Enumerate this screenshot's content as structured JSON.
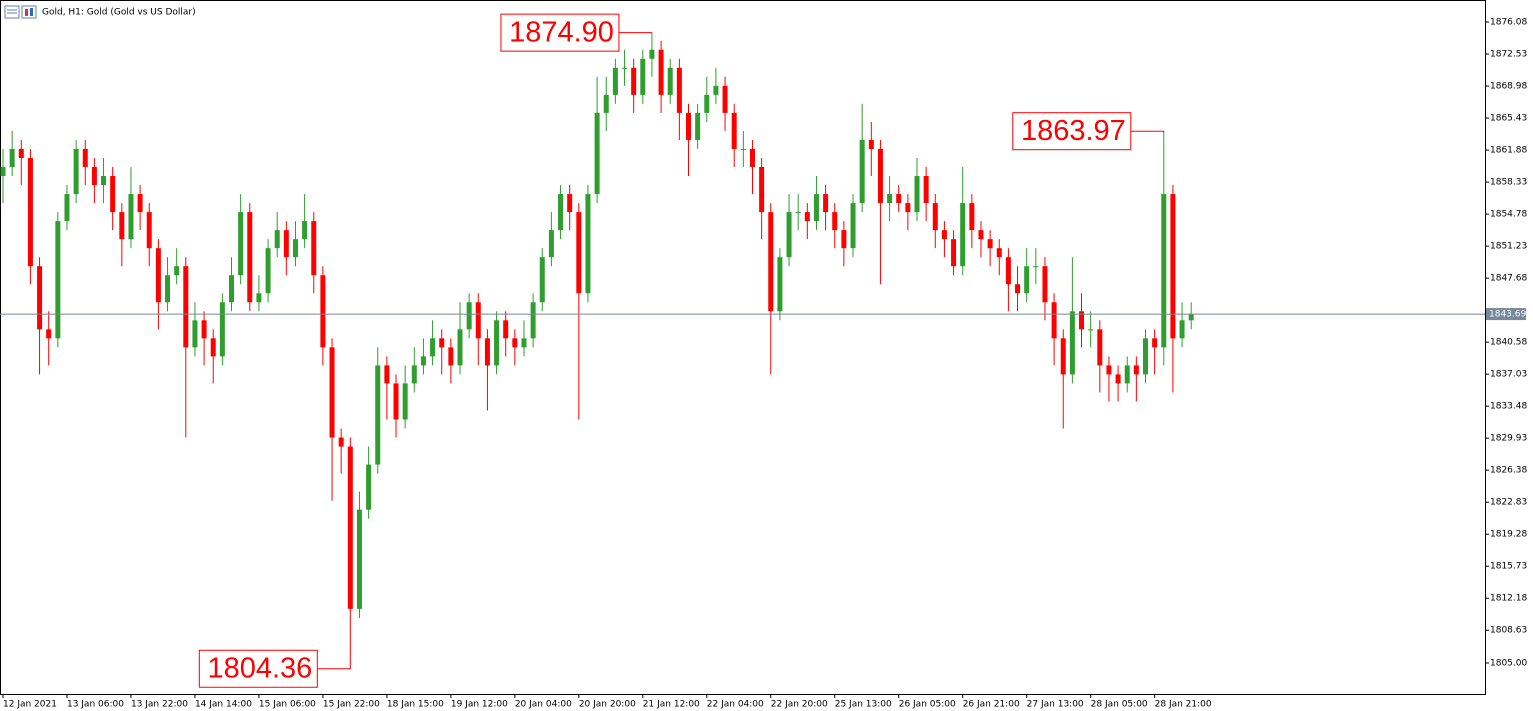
{
  "chart_data": {
    "type": "candlestick",
    "title": "Gold, H1:  Gold (Gold vs US Dollar)",
    "up_color": "#2e9e2e",
    "down_color": "#ff0000",
    "ylim": [
      1801.56,
      1878.52
    ],
    "yticks": [
      1876.08,
      1872.53,
      1868.98,
      1865.43,
      1861.88,
      1858.33,
      1854.78,
      1851.23,
      1847.68,
      1840.58,
      1837.03,
      1833.48,
      1829.93,
      1826.38,
      1822.83,
      1819.28,
      1815.73,
      1812.18,
      1808.63,
      {
        "value": 1805,
        "label": "1805.00"
      }
    ],
    "categories": [
      "12 Jan 2021",
      null,
      null,
      null,
      null,
      null,
      null,
      "13 Jan 06:00",
      null,
      null,
      null,
      null,
      null,
      null,
      "13 Jan 22:00",
      null,
      null,
      null,
      null,
      null,
      null,
      "14 Jan 14:00",
      null,
      null,
      null,
      null,
      null,
      null,
      "15 Jan 06:00",
      null,
      null,
      null,
      null,
      null,
      null,
      "15 Jan 22:00",
      null,
      null,
      null,
      null,
      null,
      null,
      "18 Jan 15:00",
      null,
      null,
      null,
      null,
      null,
      null,
      "19 Jan 12:00",
      null,
      null,
      null,
      null,
      null,
      null,
      "20 Jan 04:00",
      null,
      null,
      null,
      null,
      null,
      null,
      "20 Jan 20:00",
      null,
      null,
      null,
      null,
      null,
      null,
      "21 Jan 12:00",
      null,
      null,
      null,
      null,
      null,
      null,
      "22 Jan 04:00",
      null,
      null,
      null,
      null,
      null,
      null,
      "22 Jan 20:00",
      null,
      null,
      null,
      null,
      null,
      null,
      "25 Jan 13:00",
      null,
      null,
      null,
      null,
      null,
      null,
      "26 Jan 05:00",
      null,
      null,
      null,
      null,
      null,
      null,
      "26 Jan 21:00",
      null,
      null,
      null,
      null,
      null,
      null,
      "27 Jan 13:00",
      null,
      null,
      null,
      null,
      null,
      null,
      "28 Jan 05:00",
      null,
      null,
      null,
      null,
      null,
      null,
      "28 Jan 21:00",
      null,
      null,
      null,
      null
    ],
    "open": [
      1859,
      1860,
      1862,
      1861,
      1849,
      1842,
      1841,
      1854,
      1857,
      1862,
      1860,
      1858,
      1859,
      1855,
      1852,
      1857,
      1855,
      1851,
      1845,
      1848,
      1849,
      1840,
      1843,
      1841,
      1839,
      1845,
      1848,
      1855,
      1845,
      1846,
      1851,
      1853,
      1850,
      1852,
      1854,
      1848,
      1840,
      1830,
      1829,
      1811,
      1822,
      1827,
      1838,
      1836,
      1832,
      1836,
      1838,
      1839,
      1841,
      1840,
      1838,
      1842,
      1845,
      1841,
      1838,
      1843,
      1841,
      1840,
      1841,
      1845,
      1850,
      1853,
      1857,
      1855,
      1846,
      1857,
      1866,
      1868,
      1871,
      1871,
      1868,
      1872,
      1873,
      1868,
      1871,
      1866,
      1863,
      1866,
      1868,
      1869,
      1866,
      1862,
      1862,
      1860,
      1855,
      1844,
      1850,
      1855,
      1855,
      1854,
      1857,
      1855,
      1853,
      1851,
      1856,
      1863,
      1862,
      1856,
      1857,
      1856,
      1855,
      1859,
      1856,
      1853,
      1852,
      1849,
      1856,
      1853,
      1852,
      1851,
      1850,
      1847,
      1846,
      1849,
      1849,
      1845,
      1841,
      1837,
      1844,
      1842,
      1842,
      1838,
      1837,
      1836,
      1838,
      1837,
      1841,
      1840,
      1857,
      1841,
      1843
    ],
    "high": [
      1862,
      1864,
      1863,
      1862,
      1850,
      1844,
      1855,
      1858,
      1863,
      1863,
      1861,
      1861,
      1860,
      1856,
      1860,
      1858,
      1856,
      1852,
      1850,
      1851,
      1850,
      1845,
      1844,
      1842,
      1846,
      1850,
      1857,
      1856,
      1848,
      1852,
      1855,
      1854,
      1854,
      1857,
      1855,
      1849,
      1841,
      1831,
      1830,
      1824,
      1829,
      1840,
      1839,
      1837,
      1838,
      1840,
      1841,
      1843,
      1842,
      1841,
      1845,
      1846,
      1846,
      1842,
      1844,
      1844,
      1842,
      1843,
      1846,
      1851,
      1855,
      1858,
      1858,
      1856,
      1858,
      1870,
      1870,
      1872,
      1873,
      1872,
      1873,
      1874.9,
      1874,
      1872,
      1872,
      1867,
      1867,
      1870,
      1871,
      1870,
      1867,
      1864,
      1863,
      1861,
      1856,
      1851,
      1857,
      1857,
      1856,
      1859,
      1858,
      1856,
      1854,
      1857,
      1867,
      1865,
      1863,
      1859,
      1858,
      1857,
      1861,
      1860,
      1857,
      1854,
      1853,
      1860,
      1857,
      1854,
      1853,
      1852,
      1851,
      1849,
      1851,
      1851,
      1850,
      1846,
      1842,
      1850,
      1846,
      1844,
      1843,
      1839,
      1838,
      1839,
      1839,
      1842,
      1842,
      1863.97,
      1858,
      1845,
      1845
    ],
    "low": [
      1856,
      1859,
      1858,
      1847,
      1837,
      1838,
      1840,
      1853,
      1856,
      1858,
      1856,
      1856,
      1853,
      1849,
      1851,
      1853,
      1849,
      1842,
      1844,
      1847,
      1830,
      1839,
      1838,
      1836,
      1838,
      1844,
      1847,
      1844,
      1844,
      1845,
      1850,
      1848,
      1849,
      1851,
      1846,
      1838,
      1823,
      1826,
      1804.36,
      1810,
      1821,
      1826,
      1832,
      1830,
      1831,
      1835,
      1837,
      1838,
      1837,
      1836,
      1837,
      1841,
      1838,
      1833,
      1837,
      1839,
      1838,
      1839,
      1840,
      1844,
      1849,
      1852,
      1853,
      1832,
      1845,
      1856,
      1864,
      1867,
      1869,
      1866,
      1867,
      1870,
      1866,
      1867,
      1863,
      1859,
      1862,
      1865,
      1867,
      1864,
      1860,
      1860,
      1857,
      1852,
      1837,
      1843,
      1849,
      1853,
      1852,
      1853,
      1853,
      1851,
      1849,
      1850,
      1855,
      1859,
      1847,
      1854,
      1855,
      1853,
      1854,
      1854,
      1851,
      1850,
      1848,
      1848,
      1851,
      1850,
      1849,
      1848,
      1844,
      1844,
      1845,
      1847,
      1843,
      1838,
      1831,
      1836,
      1840,
      1840,
      1835,
      1834,
      1834,
      1835,
      1834,
      1836,
      1837,
      1838,
      1835,
      1840,
      1842
    ],
    "close": [
      1860,
      1862,
      1861,
      1849,
      1842,
      1841,
      1854,
      1857,
      1862,
      1860,
      1858,
      1859,
      1855,
      1852,
      1857,
      1855,
      1851,
      1845,
      1848,
      1849,
      1840,
      1843,
      1841,
      1839,
      1845,
      1848,
      1855,
      1845,
      1846,
      1851,
      1853,
      1850,
      1852,
      1854,
      1848,
      1840,
      1830,
      1829,
      1811,
      1822,
      1827,
      1838,
      1836,
      1832,
      1836,
      1838,
      1839,
      1841,
      1840,
      1838,
      1842,
      1845,
      1841,
      1838,
      1843,
      1841,
      1840,
      1841,
      1845,
      1850,
      1853,
      1857,
      1855,
      1846,
      1857,
      1866,
      1868,
      1871,
      1871,
      1868,
      1872,
      1873,
      1868,
      1871,
      1866,
      1863,
      1866,
      1868,
      1869,
      1866,
      1862,
      1862,
      1860,
      1855,
      1844,
      1850,
      1855,
      1855,
      1854,
      1857,
      1855,
      1853,
      1851,
      1856,
      1863,
      1862,
      1856,
      1857,
      1856,
      1855,
      1859,
      1856,
      1853,
      1852,
      1849,
      1856,
      1853,
      1852,
      1851,
      1850,
      1847,
      1846,
      1849,
      1849,
      1845,
      1841,
      1837,
      1844,
      1842,
      1842,
      1838,
      1837,
      1836,
      1838,
      1837,
      1841,
      1840,
      1857,
      1841,
      1843,
      1843.69
    ],
    "annotations": [
      {
        "value": 1874.9,
        "label": "1874.90"
      },
      {
        "value": 1863.97,
        "label": "1863.97"
      },
      {
        "value": 1804.36,
        "label": "1804.36"
      }
    ],
    "price_line": {
      "value": 1843.69,
      "label": "1843.69",
      "color": "#778899"
    }
  }
}
